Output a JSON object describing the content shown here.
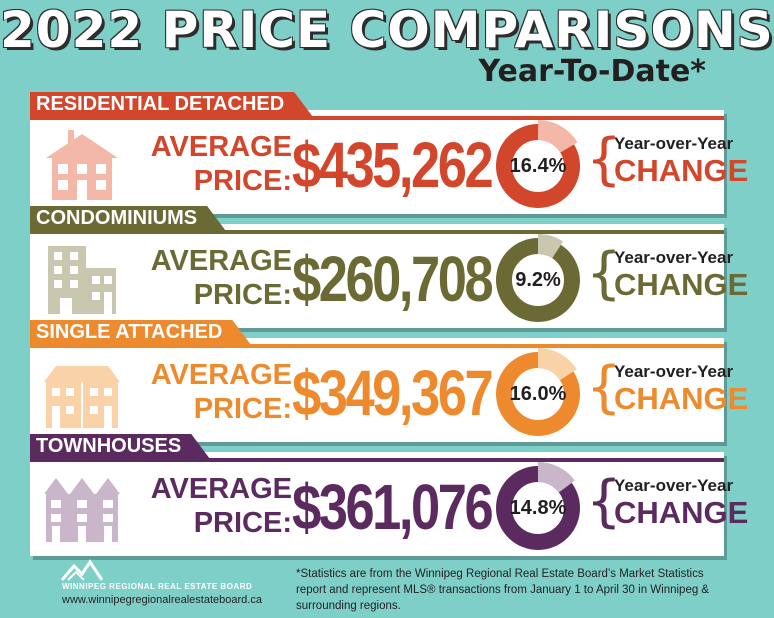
{
  "header": {
    "title": "2022 PRICE COMPARISONS",
    "subtitle": "Year-To-Date*"
  },
  "cards": [
    {
      "label": "RESIDENTIAL DETACHED",
      "avg_line1": "AVERAGE",
      "avg_line2": "PRICE:",
      "price": "$435,262",
      "pct_text": "16.4%",
      "pct_value": 16.4,
      "yoy": "Year-over-Year",
      "change": "CHANGE",
      "color": "#d2462b",
      "light": "#f4b8a8",
      "icon": "house-icon"
    },
    {
      "label": "CONDOMINIUMS",
      "avg_line1": "AVERAGE",
      "avg_line2": "PRICE:",
      "price": "$260,708",
      "pct_text": "9.2%",
      "pct_value": 9.2,
      "yoy": "Year-over-Year",
      "change": "CHANGE",
      "color": "#6b6a35",
      "light": "#c9c7b0",
      "icon": "condo-building-icon"
    },
    {
      "label": "SINGLE ATTACHED",
      "avg_line1": "AVERAGE",
      "avg_line2": "PRICE:",
      "price": "$349,367",
      "pct_text": "16.0%",
      "pct_value": 16.0,
      "yoy": "Year-over-Year",
      "change": "CHANGE",
      "color": "#ee8a2e",
      "light": "#f9d2a8",
      "icon": "attached-homes-icon"
    },
    {
      "label": "TOWNHOUSES",
      "avg_line1": "AVERAGE",
      "avg_line2": "PRICE:",
      "price": "$361,076",
      "pct_text": "14.8%",
      "pct_value": 14.8,
      "yoy": "Year-over-Year",
      "change": "CHANGE",
      "color": "#5b2a5e",
      "light": "#c9b6ca",
      "icon": "townhouses-icon"
    }
  ],
  "footer": {
    "logo_name": "WINNIPEG REGIONAL REAL ESTATE BOARD",
    "url": "www.winnipegregionalrealestateboard.ca",
    "note": "*Statistics are from the Winnipeg Regional Real Estate Board’s Market Statistics report and represent MLS® transactions from January 1 to April 30 in Winnipeg & surrounding regions."
  }
}
